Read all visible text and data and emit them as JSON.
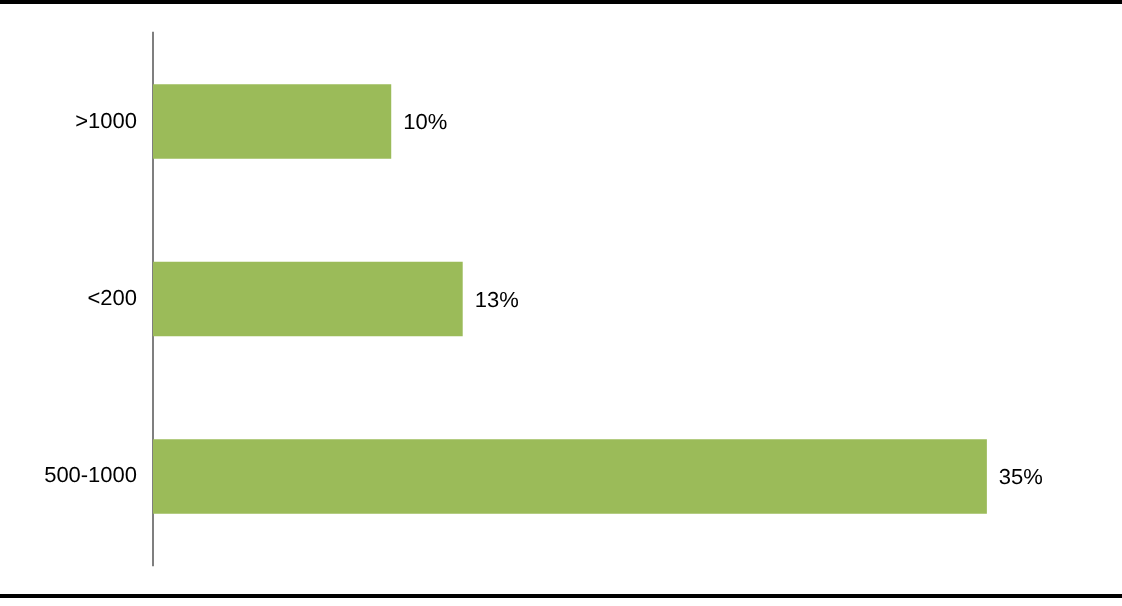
{
  "chart_data": {
    "type": "bar",
    "orientation": "horizontal",
    "categories": [
      ">1000",
      "<200",
      "500-1000"
    ],
    "values": [
      10,
      13,
      35
    ],
    "color": "#9bbb59",
    "value_labels": [
      "10%",
      "13%",
      "35%"
    ],
    "grid": false,
    "legend": false
  }
}
